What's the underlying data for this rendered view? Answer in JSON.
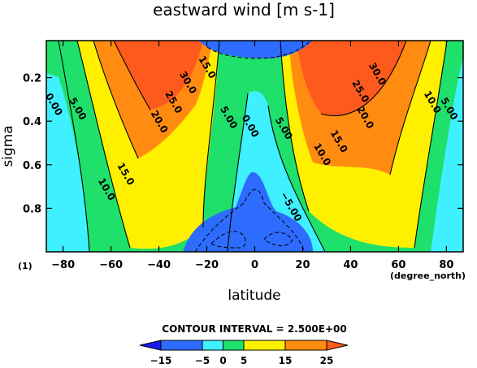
{
  "chart_data": {
    "type": "heatmap",
    "subtype": "filled-contour",
    "title": "eastward wind [m s-1]",
    "xlabel": "latitude",
    "xunit": "(degree_north)",
    "ylabel": "sigma",
    "frame_label": "(1)",
    "xlim": [
      -87,
      87
    ],
    "ylim": [
      0.03,
      1.0
    ],
    "y_inverted": true,
    "x_ticks": [
      -80,
      -60,
      -40,
      -20,
      0,
      20,
      40,
      60,
      80
    ],
    "y_ticks": [
      0.2,
      0.4,
      0.6,
      0.8
    ],
    "x_tick_labels": [
      "−80",
      "−60",
      "−40",
      "−20",
      "0",
      "20",
      "40",
      "60",
      "80"
    ],
    "y_tick_labels": [
      "0.2",
      "0.4",
      "0.6",
      "0.8"
    ],
    "contour_interval_text": "CONTOUR INTERVAL = 2.500E+00",
    "contour_interval": 2.5,
    "contour_labels": [
      {
        "text": "0.00",
        "lat": -85,
        "sigma": 0.33
      },
      {
        "text": "5.00",
        "lat": -75,
        "sigma": 0.35
      },
      {
        "text": "10.0",
        "lat": -63,
        "sigma": 0.72
      },
      {
        "text": "15.0",
        "lat": -55,
        "sigma": 0.65
      },
      {
        "text": "20.0",
        "lat": -41,
        "sigma": 0.41
      },
      {
        "text": "25.0",
        "lat": -35,
        "sigma": 0.32
      },
      {
        "text": "30.0",
        "lat": -29,
        "sigma": 0.23
      },
      {
        "text": "15.0",
        "lat": -21,
        "sigma": 0.16
      },
      {
        "text": "5.00",
        "lat": -12,
        "sigma": 0.39
      },
      {
        "text": "0.00",
        "lat": -3,
        "sigma": 0.43
      },
      {
        "text": "5.00",
        "lat": 11,
        "sigma": 0.44
      },
      {
        "text": "−5.00",
        "lat": 14,
        "sigma": 0.8
      },
      {
        "text": "30.0",
        "lat": 50,
        "sigma": 0.19
      },
      {
        "text": "25.0",
        "lat": 43,
        "sigma": 0.27
      },
      {
        "text": "20.0",
        "lat": 45,
        "sigma": 0.39
      },
      {
        "text": "15.0",
        "lat": 34,
        "sigma": 0.5
      },
      {
        "text": "10.0",
        "lat": 27,
        "sigma": 0.56
      },
      {
        "text": "10.0",
        "lat": 73,
        "sigma": 0.32
      },
      {
        "text": "5.00",
        "lat": 80,
        "sigma": 0.35
      }
    ],
    "colorbar": {
      "ticks": [
        -15,
        -5,
        0,
        5,
        15,
        25
      ],
      "tick_labels": [
        "−15",
        "−5",
        "0",
        "5",
        "15",
        "25"
      ],
      "levels": [
        -15,
        -5,
        0,
        5,
        15,
        25
      ],
      "colors": [
        "#2e6cff",
        "#3ff0ff",
        "#1ee06a",
        "#fff000",
        "#ff8c10"
      ],
      "under_color": "#1a1aee",
      "over_color": "#ff5a1e"
    }
  }
}
